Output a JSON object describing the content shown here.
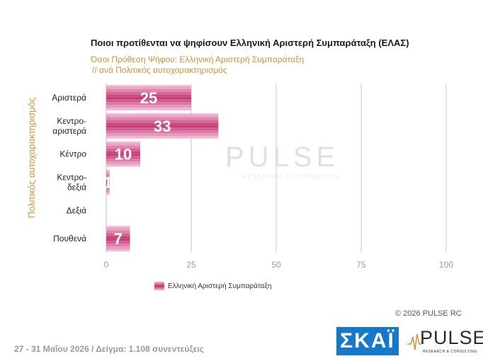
{
  "title": "Ποιοι προτίθενται να ψηφίσουν Ελληνική Αριστερή Συμπαράταξη (ΕΛΑΣ)",
  "subtitle_line1": "Όσοι Πρόθεση Ψήφου: Ελληνική Αριστερή Συμπαράταξη",
  "subtitle_line2": "// ανά Πολιτικός  αυτοχαρακτηρισμός",
  "chart_data": {
    "type": "bar",
    "orientation": "horizontal",
    "categories": [
      [
        "Αριστερά"
      ],
      [
        "Κεντρο-",
        "αριστερά"
      ],
      [
        "Κέντρο"
      ],
      [
        "Κεντρο-",
        "δεξιά"
      ],
      [
        "Δεξιά"
      ],
      [
        "Πουθενά"
      ]
    ],
    "series": [
      {
        "name": "Ελληνική Αριστερή Συμπαράταξη",
        "values": [
          25,
          33,
          10,
          1,
          0,
          7
        ]
      }
    ],
    "data_labels": [
      "25",
      "33",
      "10",
      "1",
      "",
      "7"
    ],
    "ylabel": "Πολιτικός  αυτοχαρακτηρισμός",
    "xlim": [
      0,
      100
    ],
    "xticks": [
      0,
      25,
      50,
      75,
      100
    ],
    "grid": true,
    "legend_position": "bottom",
    "bar_color": "#c2306e"
  },
  "watermark": {
    "word": "PULSE",
    "sub": "RESEARCH & CONSULTING"
  },
  "copyright": "© 2026 PULSE RC",
  "footer": "27 - 31 Μαΐου 2026  /  Δείγμα:  1.108 συνεντεύξεις",
  "logos": {
    "skai": "ΣΚΑΪ",
    "pulse": "PULSE",
    "pulse_sub": "RESEARCH & CONSULTING"
  }
}
